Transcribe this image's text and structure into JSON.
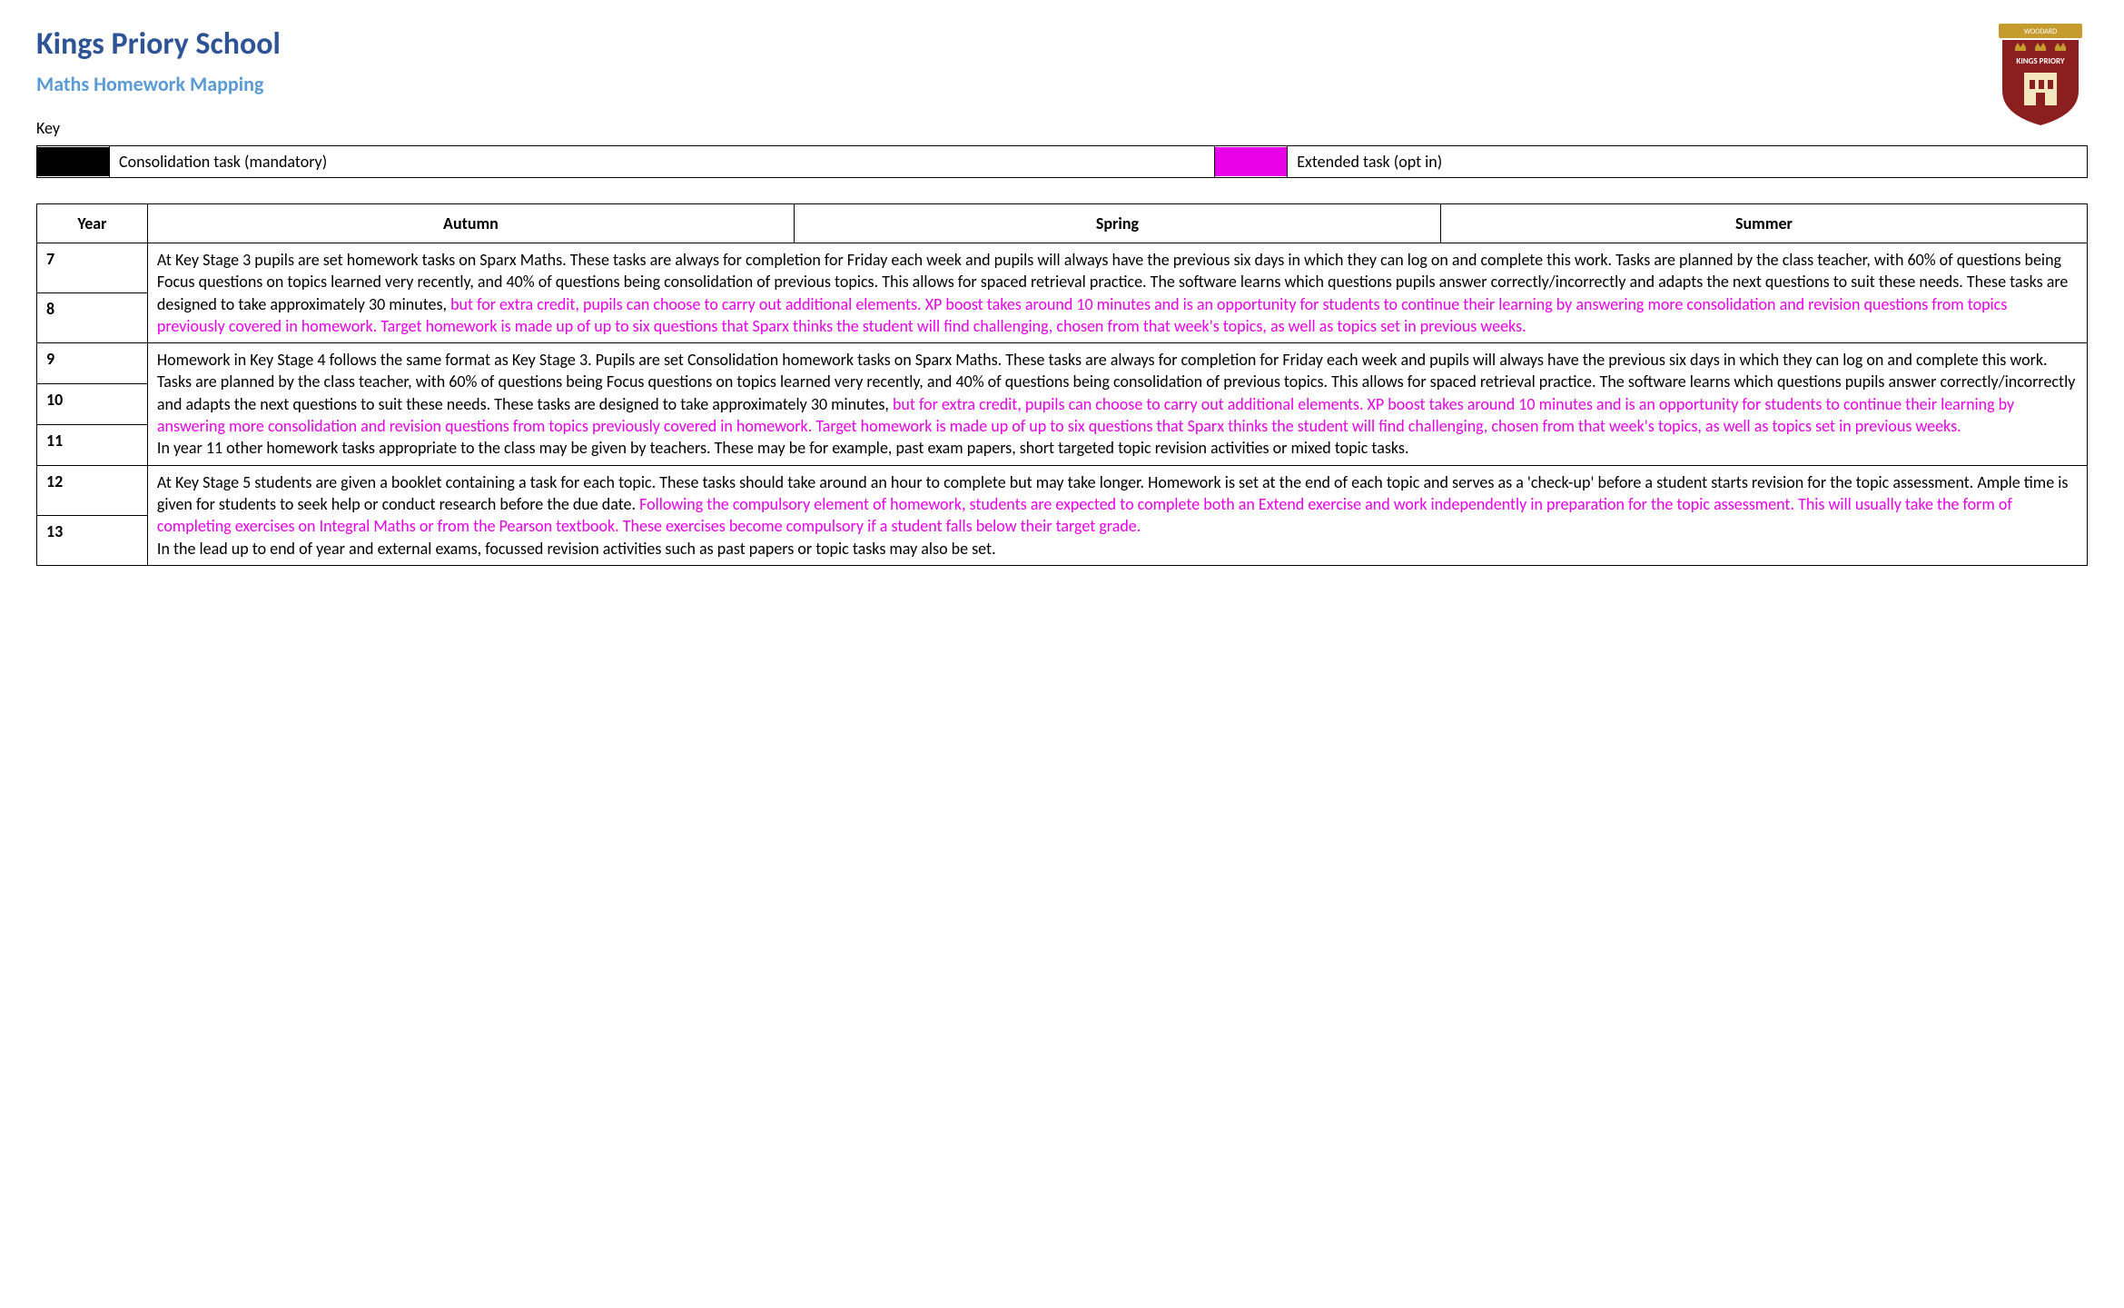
{
  "colors": {
    "title_blue": "#2f5496",
    "subtitle_blue": "#5b9bd5",
    "consolidation_swatch": "#000000",
    "extended_swatch": "#e800e8",
    "text_default": "#000000",
    "extended_text": "#e800e8",
    "border": "#000000",
    "background": "#ffffff",
    "logo_crest": "#8b1e1e",
    "logo_banner": "#c49b2c",
    "logo_banner_text": "#ffffff",
    "logo_window": "#f4e7c0",
    "logo_crown": "#c49b2c",
    "logo_crest_text": "#ffffff"
  },
  "font_sizes_pt": {
    "school_title": 26,
    "subject_title": 17,
    "body": 13,
    "table_header": 13
  },
  "header": {
    "school_title": "Kings Priory School",
    "subject_title": "Maths Homework Mapping",
    "logo_banner_text": "WOODARD",
    "logo_crest_text": "KINGS PRIORY"
  },
  "key": {
    "label": "Key",
    "items": [
      {
        "swatch_color_ref": "consolidation_swatch",
        "label": "Consolidation task (mandatory)"
      },
      {
        "swatch_color_ref": "extended_swatch",
        "label": "Extended task (opt in)"
      }
    ]
  },
  "main_table": {
    "columns": [
      "Year",
      "Autumn",
      "Spring",
      "Summer"
    ],
    "column_widths_pct": [
      5.4,
      31.53,
      31.53,
      31.53
    ],
    "groups": [
      {
        "years": [
          "7",
          "8"
        ],
        "segments": [
          {
            "type": "normal",
            "text": "At Key Stage 3 pupils are set homework tasks on Sparx Maths. These tasks are always for completion for Friday each week and pupils will always have the previous six days in which they can log on and complete this work. Tasks are planned by the class teacher, with 60% of questions being Focus questions on topics learned very recently, and 40% of questions being consolidation of previous topics. This allows for spaced retrieval practice.   The software learns which questions pupils answer correctly/incorrectly and adapts the next questions to suit these needs. These tasks are designed to take approximately 30 minutes, "
          },
          {
            "type": "extended",
            "text": "but for extra credit, pupils can choose to carry out additional elements. XP boost takes around 10 minutes and is an opportunity for students to continue their learning by answering more consolidation and revision questions from topics previously covered in homework. Target homework is made up of up to six questions that Sparx thinks the student will find challenging, chosen from that week's topics, as well as topics set in previous weeks."
          }
        ]
      },
      {
        "years": [
          "9",
          "10",
          "11"
        ],
        "segments": [
          {
            "type": "normal",
            "text": "Homework in Key Stage 4 follows the same format as Key Stage 3. Pupils are set Consolidation homework tasks on Sparx Maths. These tasks are always for completion for Friday each week and pupils will always have the previous six days in which they can log on and complete this work. Tasks are planned by the class teacher, with 60% of questions being Focus questions on topics learned very recently, and 40% of questions being consolidation of previous topics. This allows for spaced retrieval practice.   The software learns which questions pupils answer correctly/incorrectly and adapts the next questions to suit these needs. These tasks are designed to take approximately 30 minutes, "
          },
          {
            "type": "extended",
            "text": "but for extra credit, pupils can choose to carry out additional elements. XP boost takes around 10 minutes and is an opportunity for students to continue their learning by answering more consolidation and revision questions from topics previously covered in homework. Target homework is made up of up to six questions that Sparx thinks the student will find challenging, chosen from that week's topics, as well as topics set in previous weeks."
          },
          {
            "type": "break"
          },
          {
            "type": "normal",
            "text": "In year 11 other homework tasks appropriate to the class may be given by teachers. These may be for example, past exam papers, short targeted topic revision activities or mixed topic tasks."
          }
        ]
      },
      {
        "years": [
          "12",
          "13"
        ],
        "segments": [
          {
            "type": "normal",
            "text": "At Key Stage 5 students are given a booklet containing a task for each topic. These tasks should take around an hour to complete but may take longer. Homework is set at the end of each topic and serves as a 'check-up' before a student starts revision for the topic assessment. Ample time is given for students to seek help or conduct research before the due date. "
          },
          {
            "type": "extended",
            "text": "Following the compulsory element of homework, students are expected to complete both an Extend exercise and work independently in preparation for the topic assessment. This will usually take the form of completing exercises on Integral Maths or from the Pearson textbook. These exercises become compulsory if a student falls below their target grade."
          },
          {
            "type": "break"
          },
          {
            "type": "normal",
            "text": "In the lead up to end of year and external exams, focussed revision activities such as past papers or topic tasks may also be set."
          }
        ]
      }
    ]
  }
}
